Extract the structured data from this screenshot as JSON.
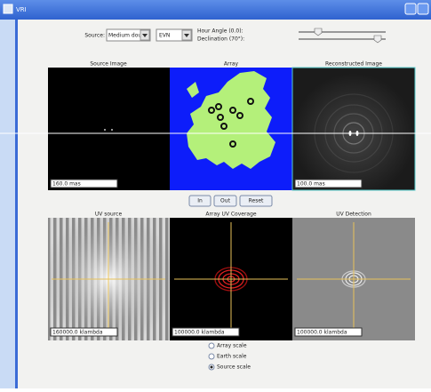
{
  "window": {
    "title": "VRI"
  },
  "controls": {
    "source_label": "Source:",
    "source_value": "Medium double",
    "array_value": "EVN",
    "hour_angle": "Hour Angle (0.0):",
    "declination": "Declination (70°):"
  },
  "panels": [
    {
      "label": "Source Image",
      "scale": "160.0 mas"
    },
    {
      "label": "Array"
    },
    {
      "label": "Reconstructed Image",
      "scale": "100.0 mas"
    },
    {
      "label": "UV source",
      "scale": "160000.0 klambda"
    },
    {
      "label": "Array UV Coverage",
      "scale": "100000.0 klambda"
    },
    {
      "label": "UV Detection",
      "scale": "100000.0 klambda"
    }
  ],
  "buttons": [
    "In",
    "Out",
    "Reset"
  ],
  "radio": {
    "options": [
      "Array scale",
      "Earth scale",
      "Source scale"
    ],
    "selected": 2
  }
}
